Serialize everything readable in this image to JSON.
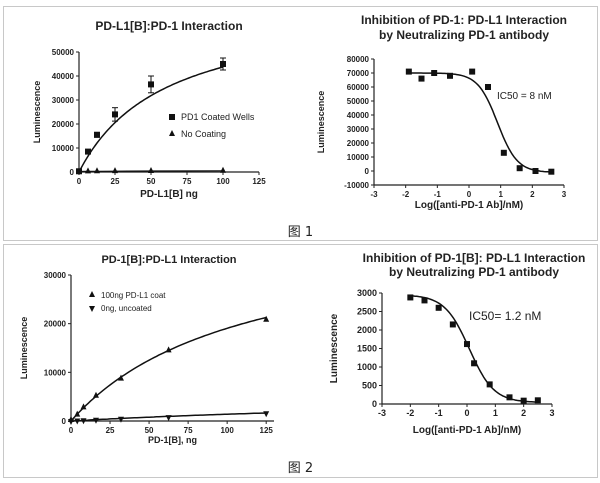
{
  "figures": [
    {
      "caption": "图 1"
    },
    {
      "caption": "图 2"
    }
  ],
  "chart_data": [
    {
      "type": "scatter",
      "title": "PD-L1[B]:PD-1 Interaction",
      "xlabel": "PD-L1[B] ng",
      "ylabel": "Luminescence",
      "xlim": [
        0,
        125
      ],
      "ylim": [
        0,
        50000
      ],
      "xticks": [
        "0",
        "25",
        "50",
        "75",
        "100",
        "125"
      ],
      "yticks": [
        "0",
        "10000",
        "20000",
        "30000",
        "40000",
        "50000"
      ],
      "legend_position": "right",
      "series": [
        {
          "name": "PD1 Coated Wells",
          "marker": "square",
          "x": [
            0,
            6.25,
            12.5,
            25,
            50,
            100
          ],
          "y": [
            300,
            8500,
            15500,
            24000,
            36500,
            45000
          ],
          "err": [
            0,
            800,
            1000,
            2800,
            3500,
            2500
          ],
          "fit": "hyperbola",
          "fit_params": {
            "bmax": 70000,
            "kd": 60
          }
        },
        {
          "name": "No Coating",
          "marker": "triangle",
          "x": [
            0,
            6.25,
            12.5,
            25,
            50,
            100
          ],
          "y": [
            200,
            250,
            300,
            350,
            400,
            500
          ]
        }
      ]
    },
    {
      "type": "scatter",
      "title": "Inhibition of PD-1: PD-L1 Interaction",
      "subtitle": "by Neutralizing PD-1 antibody",
      "xlabel": "Log([anti-PD-1 Ab]/nM)",
      "ylabel": "Luminescence",
      "xlim": [
        -3,
        3
      ],
      "ylim": [
        -10000,
        80000
      ],
      "xticks": [
        "-3",
        "-2",
        "-1",
        "0",
        "1",
        "2",
        "3"
      ],
      "yticks": [
        "-10000",
        "0",
        "10000",
        "20000",
        "30000",
        "40000",
        "50000",
        "60000",
        "70000",
        "80000"
      ],
      "annotation": "IC50 = 8 nM",
      "series": [
        {
          "name": "data",
          "marker": "square",
          "x": [
            -1.9,
            -1.5,
            -1.1,
            -0.6,
            0.1,
            0.6,
            1.1,
            1.6,
            2.1,
            2.6
          ],
          "y": [
            71000,
            66000,
            70000,
            68000,
            71000,
            60000,
            13000,
            2000,
            0,
            -500
          ],
          "fit": "sigmoid",
          "fit_params": {
            "top": 70000,
            "bottom": -1000,
            "logic50": 0.9,
            "hill": 1.4
          }
        }
      ]
    },
    {
      "type": "scatter",
      "title": "PD-1[B]:PD-L1 Interaction",
      "xlabel": "PD-1[B], ng",
      "ylabel": "Luminescence",
      "xlim": [
        0,
        130
      ],
      "ylim": [
        0,
        30000
      ],
      "xticks": [
        "0",
        "25",
        "50",
        "75",
        "100",
        "125"
      ],
      "yticks": [
        "0",
        "10000",
        "20000",
        "30000"
      ],
      "legend_position": "top-left",
      "series": [
        {
          "name": "100ng PD-L1 coat",
          "marker": "triangle",
          "x": [
            0,
            4,
            8,
            16,
            32,
            62.5,
            125
          ],
          "y": [
            200,
            1300,
            2800,
            5200,
            8700,
            14500,
            20800
          ],
          "fit": "hyperbola",
          "fit_params": {
            "bmax": 40000,
            "kd": 110
          }
        },
        {
          "name": "0ng, uncoated",
          "marker": "triangle-down",
          "x": [
            0,
            4,
            8,
            16,
            32,
            62.5,
            125
          ],
          "y": [
            0,
            100,
            150,
            250,
            450,
            800,
            1600
          ],
          "fit": "hyperbola",
          "fit_params": {
            "bmax": 6000,
            "kd": 330
          }
        }
      ]
    },
    {
      "type": "scatter",
      "title": "Inhibition of PD-1[B]: PD-L1 Interaction",
      "subtitle": "by Neutralizing PD-1 antibody",
      "xlabel": "Log([anti-PD-1 Ab]/nM)",
      "ylabel": "Luminescence",
      "xlim": [
        -3,
        3
      ],
      "ylim": [
        0,
        3000
      ],
      "xticks": [
        "-3",
        "-2",
        "-1",
        "0",
        "1",
        "2",
        "3"
      ],
      "yticks": [
        "0",
        "500",
        "1000",
        "1500",
        "2000",
        "2500",
        "3000"
      ],
      "annotation": "IC50= 1.2 nM",
      "series": [
        {
          "name": "data",
          "marker": "square",
          "x": [
            -2,
            -1.5,
            -1,
            -0.5,
            0,
            0.25,
            0.8,
            1.5,
            2,
            2.5
          ],
          "y": [
            2880,
            2800,
            2600,
            2150,
            1620,
            1100,
            530,
            180,
            90,
            100
          ],
          "fit": "sigmoid",
          "fit_params": {
            "top": 2950,
            "bottom": 40,
            "logic50": 0.08,
            "hill": 1.0
          }
        }
      ]
    }
  ]
}
